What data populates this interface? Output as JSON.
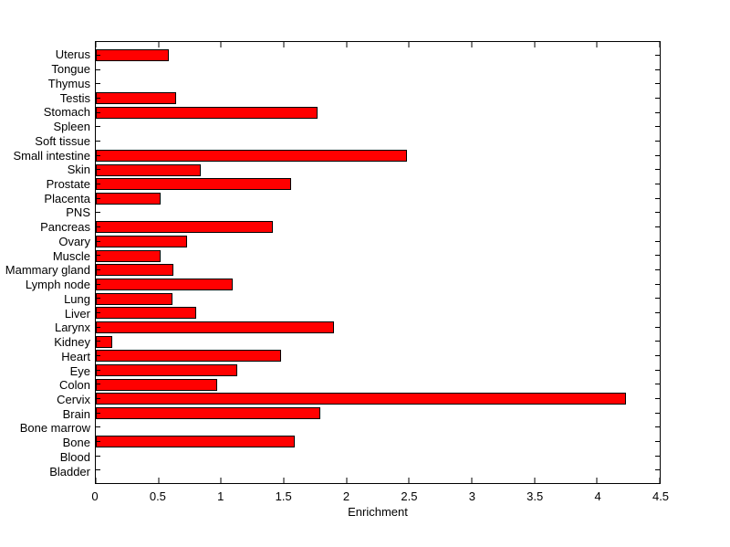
{
  "chart_data": {
    "type": "bar",
    "orientation": "horizontal",
    "title": "",
    "xlabel": "Enrichment",
    "ylabel": "",
    "xlim": [
      0,
      4.5
    ],
    "x_ticks": [
      0,
      0.5,
      1,
      1.5,
      2,
      2.5,
      3,
      3.5,
      4,
      4.5
    ],
    "x_tick_labels": [
      "0",
      "0.5",
      "1",
      "1.5",
      "2",
      "2.5",
      "3",
      "3.5",
      "4",
      "4.5"
    ],
    "categories": [
      "Uterus",
      "Tongue",
      "Thymus",
      "Testis",
      "Stomach",
      "Spleen",
      "Soft tissue",
      "Small intestine",
      "Skin",
      "Prostate",
      "Placenta",
      "PNS",
      "Pancreas",
      "Ovary",
      "Muscle",
      "Mammary gland",
      "Lymph node",
      "Lung",
      "Liver",
      "Larynx",
      "Kidney",
      "Heart",
      "Eye",
      "Colon",
      "Cervix",
      "Brain",
      "Bone marrow",
      "Bone",
      "Blood",
      "Bladder"
    ],
    "values": [
      0.58,
      0,
      0,
      0.64,
      1.77,
      0,
      0,
      2.48,
      0.84,
      1.56,
      0.52,
      0,
      1.41,
      0.73,
      0.52,
      0.62,
      1.09,
      0.61,
      0.8,
      1.9,
      0.13,
      1.48,
      1.13,
      0.97,
      4.23,
      1.79,
      0,
      1.59,
      0,
      0
    ],
    "bar_color": "#ff0000",
    "bar_edge_color": "#000000",
    "axis_color": "#000000",
    "background_color": "#ffffff",
    "grid": false,
    "legend": null,
    "tick_direction": "in"
  }
}
